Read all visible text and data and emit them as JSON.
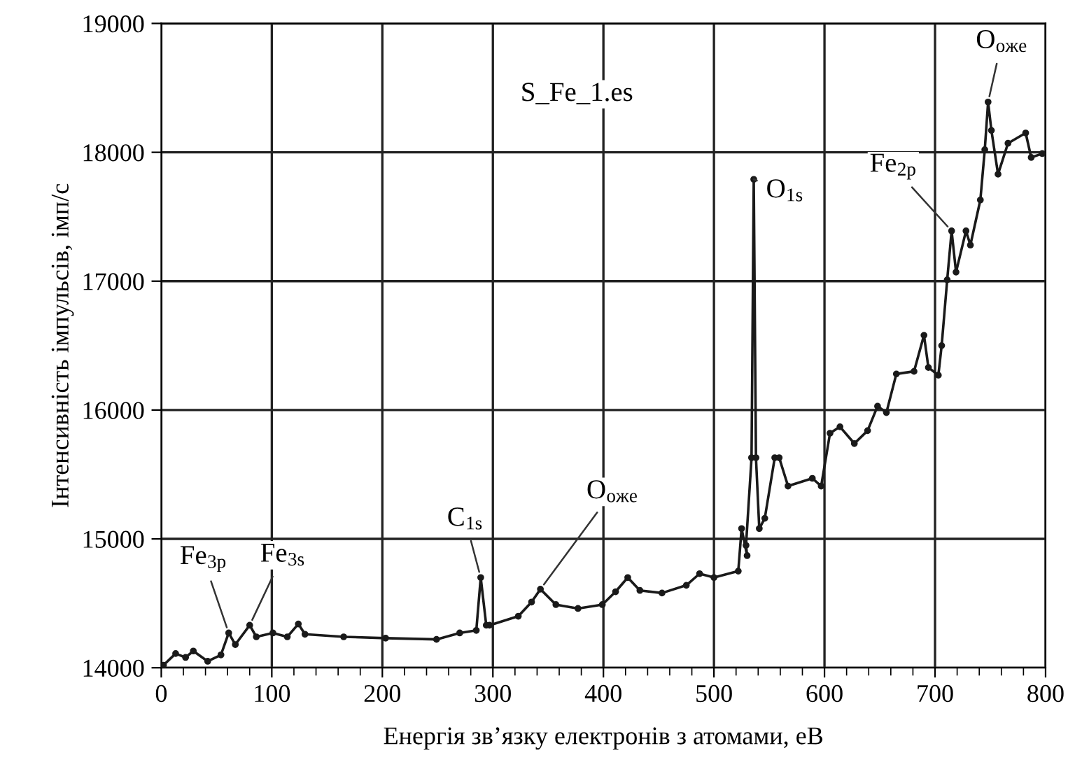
{
  "chart_data": {
    "type": "line",
    "xlabel": "Енергія зв’язку електронів з атомами, еВ",
    "ylabel": "Інтенсивність імпульсів, імп/с",
    "xlim": [
      0,
      800
    ],
    "xticks": [
      0,
      100,
      200,
      300,
      400,
      500,
      600,
      700,
      800
    ],
    "ylim": [
      14000,
      19000
    ],
    "yticks": [
      14000,
      15000,
      16000,
      17000,
      18000,
      19000
    ],
    "grid": true,
    "marker": "circle",
    "line_style": "solid",
    "series": [
      {
        "color": "#1a1a1a",
        "x": [
          2,
          13,
          22,
          29,
          42,
          54,
          61,
          67,
          80,
          86,
          101,
          114,
          124,
          130,
          165,
          203,
          249,
          270,
          285,
          289,
          294,
          297,
          323,
          335,
          343,
          357,
          377,
          399,
          411,
          422,
          433,
          453,
          475,
          487,
          500,
          522,
          525,
          530,
          529,
          534,
          536,
          538,
          541,
          546,
          555,
          559,
          567,
          589,
          597,
          605,
          614,
          627,
          639,
          648,
          656,
          665,
          681,
          690,
          694,
          703,
          706,
          711,
          715,
          719,
          728,
          732,
          741,
          745,
          748,
          751,
          757,
          766,
          782,
          787,
          797
        ],
        "values": [
          14020,
          14110,
          14080,
          14130,
          14050,
          14100,
          14270,
          14180,
          14330,
          14240,
          14270,
          14240,
          14340,
          14260,
          14240,
          14230,
          14220,
          14270,
          14290,
          14700,
          14330,
          14330,
          14400,
          14510,
          14610,
          14490,
          14460,
          14490,
          14590,
          14700,
          14600,
          14580,
          14640,
          14730,
          14700,
          14750,
          15080,
          14870,
          14950,
          15630,
          17790,
          15630,
          15080,
          15160,
          15630,
          15630,
          15410,
          15470,
          15410,
          15820,
          15870,
          15740,
          15840,
          16030,
          15980,
          16280,
          16300,
          16580,
          16330,
          16270,
          16500,
          17010,
          17390,
          17070,
          17390,
          17280,
          17630,
          18020,
          18390,
          18170,
          17830,
          18070,
          18150,
          17960,
          17990
        ]
      }
    ],
    "annotations": [
      "S_Fe_1.es",
      {
        "text": "Fe$_{3p}$",
        "x": 61,
        "y": 14270
      },
      {
        "text": "Fe$_{3s}$",
        "x": 80,
        "y": 14330
      },
      {
        "text": "C$_{1s}$",
        "x": 289,
        "y": 14700
      },
      {
        "text": "O$_{оже}$",
        "x": 343,
        "y": 14610
      },
      {
        "text": "O$_{1s}$",
        "x": 536,
        "y": 17790
      },
      {
        "text": "Fe$_{2p}$",
        "x": 715,
        "y": 17390
      },
      {
        "text": "O$_{оже}$",
        "x": 748,
        "y": 18390
      }
    ]
  }
}
